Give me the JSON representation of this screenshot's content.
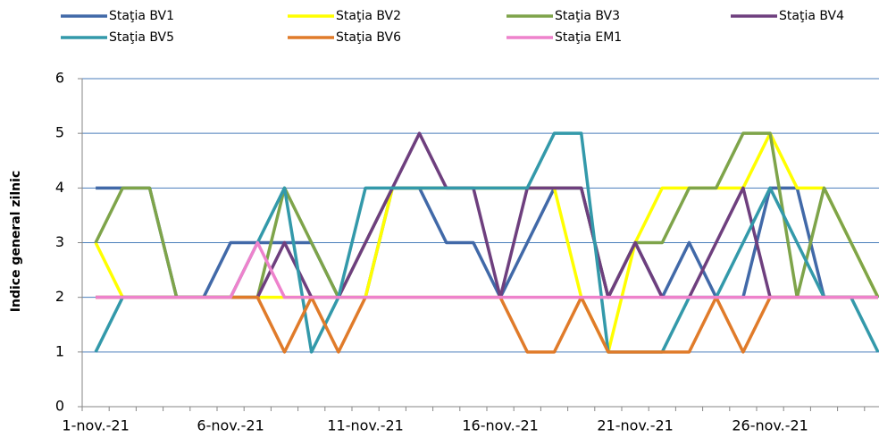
{
  "chart_data": {
    "type": "line",
    "y_label": "Indice general zilnic",
    "categories": [
      "1-nov.-21",
      null,
      null,
      null,
      null,
      "6-nov.-21",
      null,
      null,
      null,
      null,
      "11-nov.-21",
      null,
      null,
      null,
      null,
      "16-nov.-21",
      null,
      null,
      null,
      null,
      "21-nov.-21",
      null,
      null,
      null,
      null,
      "26-nov.-21",
      null,
      null,
      null,
      null
    ],
    "ylim": [
      0,
      6
    ],
    "yticks": [
      0,
      1,
      2,
      3,
      4,
      5,
      6
    ],
    "grid": true,
    "series": [
      {
        "name": "Staţia BV1",
        "color": "#4169a8",
        "values": [
          4,
          4,
          4,
          2,
          2,
          3,
          3,
          3,
          3,
          2,
          2,
          4,
          4,
          3,
          3,
          2,
          3,
          4,
          4,
          2,
          3,
          2,
          3,
          2,
          2,
          4,
          4,
          2,
          2,
          2
        ]
      },
      {
        "name": "Staţia BV2",
        "color": "#ffff00",
        "values": [
          3,
          2,
          2,
          2,
          2,
          2,
          2,
          2,
          2,
          2,
          2,
          4,
          4,
          4,
          4,
          4,
          4,
          4,
          2,
          1,
          3,
          4,
          4,
          4,
          4,
          5,
          4,
          4,
          3,
          2
        ]
      },
      {
        "name": "Staţia BV3",
        "color": "#7ea44a",
        "values": [
          3,
          4,
          4,
          2,
          2,
          2,
          2,
          4,
          3,
          2,
          3,
          4,
          4,
          4,
          4,
          4,
          4,
          4,
          4,
          2,
          3,
          3,
          4,
          4,
          5,
          5,
          2,
          4,
          3,
          2
        ]
      },
      {
        "name": "Staţia BV4",
        "color": "#6e3f7e",
        "values": [
          2,
          2,
          2,
          2,
          2,
          2,
          2,
          3,
          2,
          2,
          3,
          4,
          5,
          4,
          4,
          2,
          4,
          4,
          4,
          2,
          3,
          2,
          2,
          3,
          4,
          2,
          2,
          2,
          2,
          2
        ]
      },
      {
        "name": "Staţia BV5",
        "color": "#3399aa",
        "values": [
          1,
          2,
          2,
          2,
          2,
          2,
          3,
          4,
          1,
          2,
          4,
          4,
          4,
          4,
          4,
          4,
          4,
          5,
          5,
          1,
          1,
          1,
          2,
          2,
          3,
          4,
          3,
          2,
          2,
          1
        ]
      },
      {
        "name": "Staţia BV6",
        "color": "#e07b2a",
        "values": [
          2,
          2,
          2,
          2,
          2,
          2,
          2,
          1,
          2,
          1,
          2,
          2,
          2,
          2,
          2,
          2,
          1,
          1,
          2,
          1,
          1,
          1,
          1,
          2,
          1,
          2,
          2,
          2,
          2,
          2
        ]
      },
      {
        "name": "Staţia EM1",
        "color": "#ee82cc",
        "values": [
          2,
          2,
          2,
          2,
          2,
          2,
          3,
          2,
          2,
          2,
          2,
          2,
          2,
          2,
          2,
          2,
          2,
          2,
          2,
          2,
          2,
          2,
          2,
          2,
          2,
          2,
          2,
          2,
          2,
          2
        ]
      }
    ]
  }
}
